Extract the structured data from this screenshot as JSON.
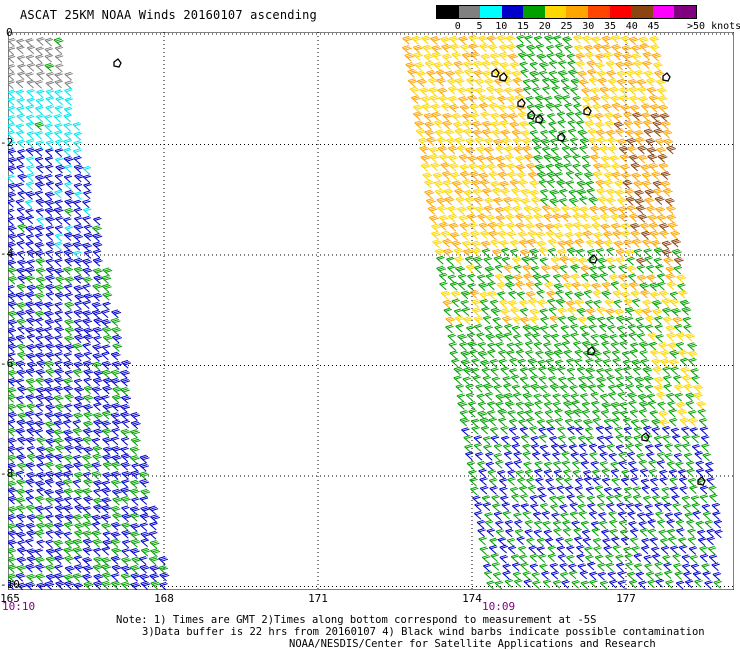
{
  "title": "ASCAT 25KM NOAA Winds 20160107 ascending",
  "legend": {
    "ticks": [
      "0",
      "5",
      "10",
      "15",
      "20",
      "25",
      "30",
      "35",
      "40",
      "45",
      ">50 knots"
    ],
    "colors": [
      "#000000",
      "#808080",
      "#00ffff",
      "#0000cd",
      "#00a000",
      "#ffd700",
      "#ffa500",
      "#ff4500",
      "#ff0000",
      "#8b4513",
      "#ff00ff",
      "#800080"
    ]
  },
  "axes": {
    "y_labels": [
      "0",
      "-2",
      "-4",
      "-6",
      "-8",
      "-10"
    ],
    "x_labels": [
      "165",
      "168",
      "171",
      "174",
      "177"
    ]
  },
  "times": [
    "10:10",
    "10:09"
  ],
  "notes": {
    "line1": "Note: 1) Times are GMT 2)Times along bottom correspond to measurement at -5S",
    "line2": "3)Data buffer is 22 hrs from 20160107 4) Black wind barbs indicate possible contamination",
    "line3": "NOAA/NESDIS/Center for Satellite Applications and Research"
  }
}
